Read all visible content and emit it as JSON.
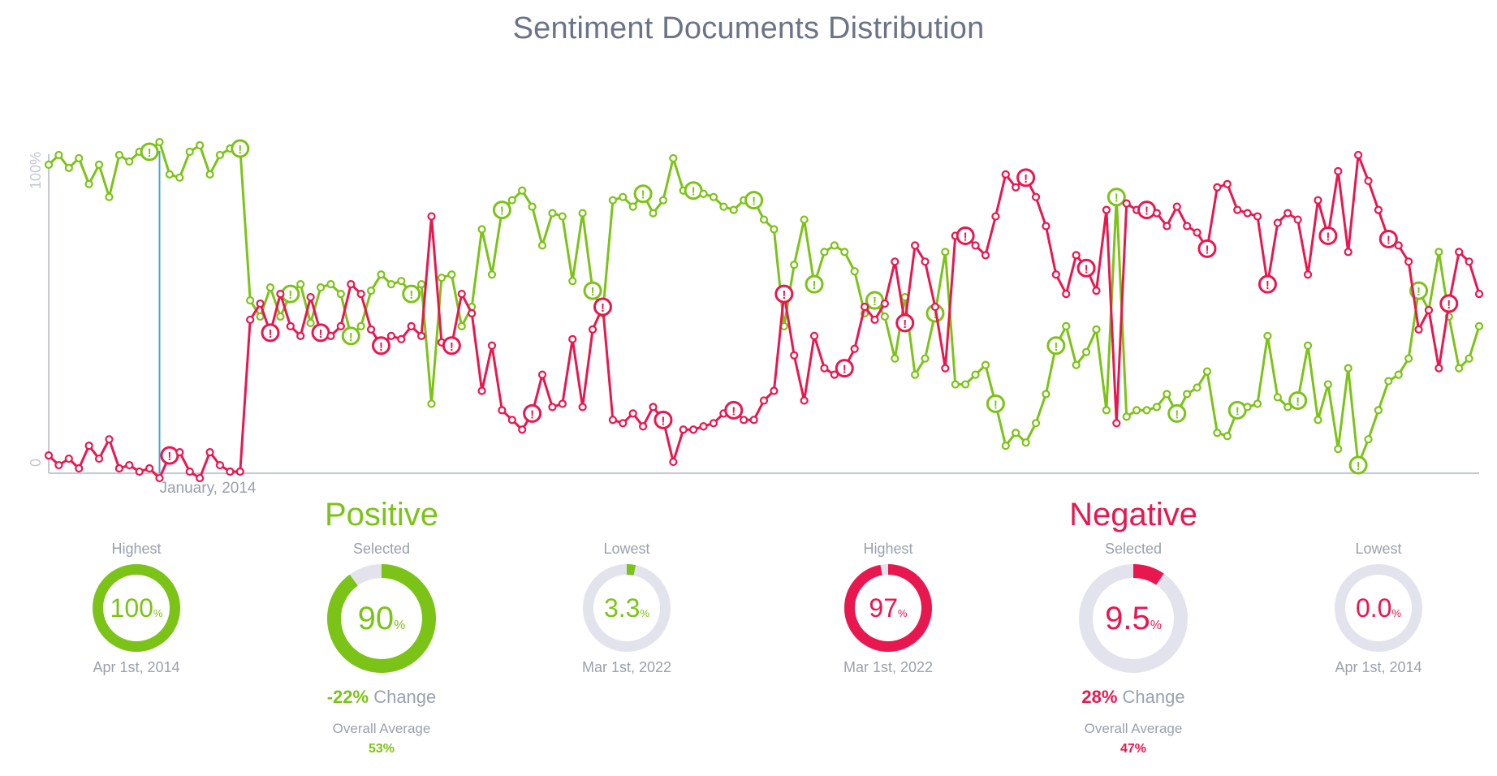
{
  "chart_data": {
    "type": "line",
    "title": "Sentiment Documents Distribution",
    "ylim": [
      0,
      100
    ],
    "y_tick_labels": [
      "0",
      "100%"
    ],
    "marker_label": "January, 2014",
    "marker_index": 11,
    "series": [
      {
        "name": "Positive",
        "color": "#7cc317",
        "values": [
          95,
          98,
          94,
          97,
          89,
          95,
          85,
          98,
          96,
          99,
          99,
          102,
          92,
          91,
          99,
          101,
          92,
          98,
          100,
          100,
          53,
          48,
          57,
          48,
          55,
          58,
          46,
          57,
          58,
          55,
          42,
          45,
          56,
          61,
          58,
          59,
          55,
          58,
          21,
          60,
          61,
          45,
          51,
          75,
          61,
          81,
          84,
          87,
          82,
          70,
          80,
          79,
          59,
          80,
          56,
          49,
          84,
          85,
          82,
          86,
          80,
          84,
          97,
          87,
          87,
          86,
          85,
          82,
          81,
          84,
          84,
          78,
          75,
          45,
          64,
          78,
          58,
          68,
          70,
          68,
          62,
          49,
          53,
          48,
          35,
          54,
          30,
          35,
          49,
          68,
          27,
          27,
          30,
          33,
          21,
          8,
          12,
          9,
          15,
          24,
          39,
          45,
          33,
          37,
          44,
          19,
          85,
          17,
          19,
          19,
          20,
          24,
          18,
          24,
          26,
          31,
          12,
          11,
          19,
          20,
          21,
          42,
          23,
          20,
          22,
          39,
          16,
          27,
          7,
          32,
          2,
          10,
          19,
          28,
          30,
          35,
          56,
          50,
          68,
          48,
          32,
          35,
          45
        ]
      },
      {
        "name": "Negative",
        "color": "#e8174f",
        "values": [
          5,
          2,
          4,
          1,
          8,
          4,
          10,
          1,
          2,
          0,
          1,
          -2,
          5,
          6,
          0,
          -2,
          6,
          2,
          0,
          0,
          47,
          52,
          43,
          55,
          45,
          42,
          54,
          43,
          42,
          45,
          58,
          55,
          44,
          39,
          42,
          41,
          45,
          42,
          79,
          40,
          39,
          55,
          49,
          25,
          39,
          19,
          16,
          13,
          18,
          30,
          20,
          21,
          41,
          20,
          44,
          51,
          16,
          15,
          18,
          14,
          20,
          16,
          3,
          13,
          13,
          14,
          15,
          18,
          19,
          16,
          16,
          22,
          25,
          55,
          36,
          22,
          42,
          32,
          30,
          32,
          38,
          51,
          47,
          52,
          65,
          46,
          70,
          65,
          51,
          32,
          73,
          73,
          70,
          67,
          79,
          92,
          88,
          91,
          85,
          76,
          61,
          55,
          67,
          63,
          56,
          81,
          15,
          83,
          81,
          81,
          80,
          76,
          82,
          76,
          74,
          69,
          88,
          89,
          81,
          80,
          79,
          58,
          77,
          80,
          78,
          61,
          84,
          73,
          93,
          68,
          98,
          90,
          81,
          72,
          70,
          65,
          44,
          50,
          32,
          52,
          68,
          65,
          55
        ]
      }
    ],
    "positive_alert_indices": [
      10,
      19,
      24,
      30,
      36,
      45,
      54,
      59,
      64,
      70,
      76,
      82,
      88,
      94,
      100,
      106,
      112,
      118,
      124,
      130,
      136
    ],
    "negative_alert_indices": [
      12,
      22,
      27,
      33,
      40,
      48,
      55,
      61,
      68,
      73,
      79,
      85,
      91,
      97,
      103,
      109,
      115,
      121,
      127,
      133,
      139
    ]
  },
  "positive": {
    "title": "Positive",
    "color": "#7cc317",
    "highest": {
      "label": "Highest",
      "value": "100",
      "unit": "%",
      "fraction": 1.0,
      "date": "Apr 1st, 2014"
    },
    "selected": {
      "label": "Selected",
      "value": "90",
      "unit": "%",
      "fraction": 0.9,
      "change_value": "-22%",
      "change_label": "Change",
      "avg_label": "Overall Average",
      "avg_value": "53%"
    },
    "lowest": {
      "label": "Lowest",
      "value": "3.3",
      "unit": "%",
      "fraction": 0.033,
      "date": "Mar 1st, 2022"
    }
  },
  "negative": {
    "title": "Negative",
    "color": "#e8174f",
    "highest": {
      "label": "Highest",
      "value": "97",
      "unit": "%",
      "fraction": 0.97,
      "date": "Mar 1st, 2022"
    },
    "selected": {
      "label": "Selected",
      "value": "9.5",
      "unit": "%",
      "fraction": 0.095,
      "change_value": "28%",
      "change_label": "Change",
      "avg_label": "Overall Average",
      "avg_value": "47%"
    },
    "lowest": {
      "label": "Lowest",
      "value": "0.0",
      "unit": "%",
      "fraction": 0.0,
      "date": "Apr 1st, 2014"
    }
  },
  "track_color": "#e3e3ee"
}
